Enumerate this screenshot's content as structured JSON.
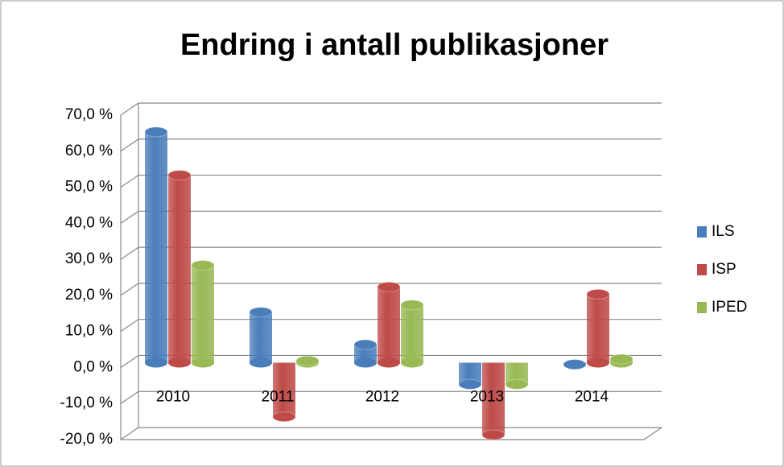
{
  "chart_data": {
    "type": "bar",
    "title": "Endring i antall publikasjoner",
    "categories": [
      "2010",
      "2011",
      "2012",
      "2013",
      "2014"
    ],
    "series": [
      {
        "name": "ILS",
        "color": "#4a7ebb",
        "values": [
          64,
          14,
          5,
          -6,
          -0.5
        ]
      },
      {
        "name": "ISP",
        "color": "#be4b48",
        "values": [
          52,
          -15,
          21,
          -20,
          19
        ]
      },
      {
        "name": "IPED",
        "color": "#98b954",
        "values": [
          27,
          0.5,
          16,
          -6,
          1
        ]
      }
    ],
    "ylim": [
      -20,
      70
    ],
    "yticks": [
      {
        "value": -20,
        "label": "-20,0 %"
      },
      {
        "value": -10,
        "label": "-10,0 %"
      },
      {
        "value": 0,
        "label": "0,0 %"
      },
      {
        "value": 10,
        "label": "10,0 %"
      },
      {
        "value": 20,
        "label": "20,0 %"
      },
      {
        "value": 30,
        "label": "30,0 %"
      },
      {
        "value": 40,
        "label": "40,0 %"
      },
      {
        "value": 50,
        "label": "50,0 %"
      },
      {
        "value": 60,
        "label": "60,0 %"
      },
      {
        "value": 70,
        "label": "70,0 %"
      }
    ],
    "grid": true,
    "legend": "right"
  }
}
